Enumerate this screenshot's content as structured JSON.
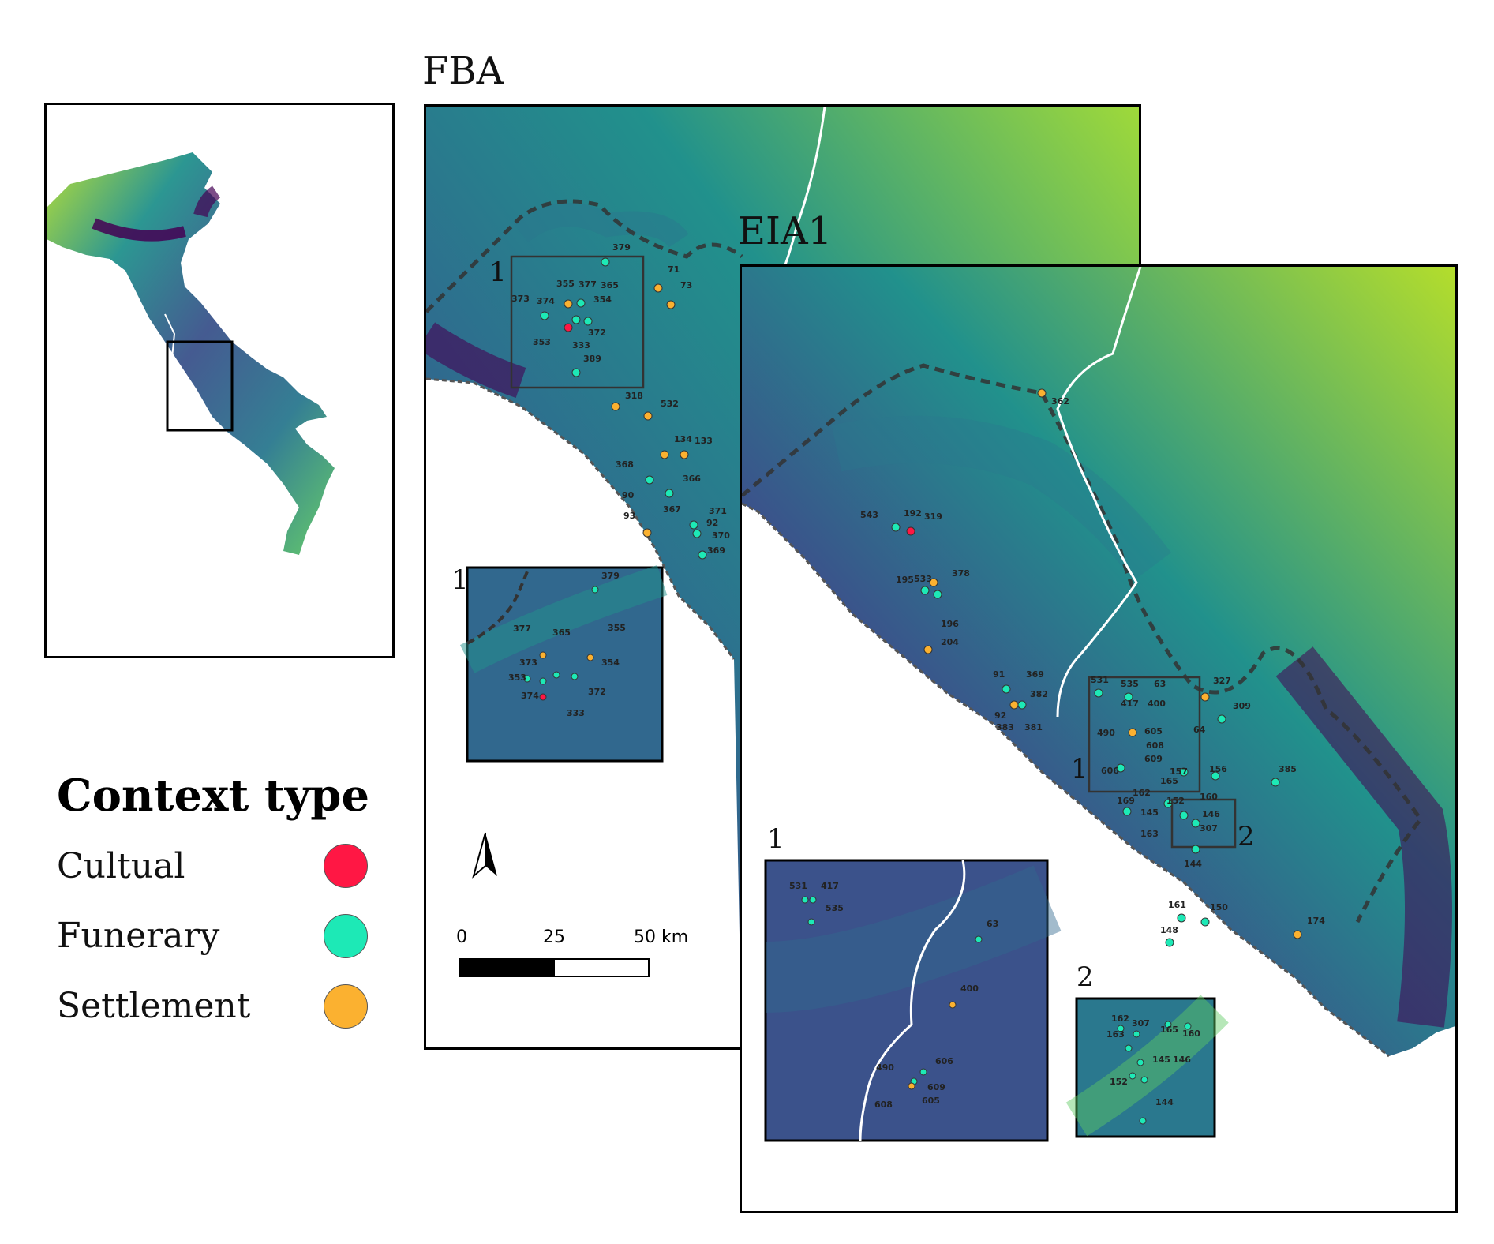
{
  "titles": {
    "panel_fba": "FBA",
    "panel_eia1": "EIA1"
  },
  "legend": {
    "title": "Context type",
    "items": [
      {
        "label": "Cultual",
        "color": "#ff1744"
      },
      {
        "label": "Funerary",
        "color": "#1de9b6"
      },
      {
        "label": "Settlement",
        "color": "#fbb130"
      }
    ]
  },
  "scale_bar": {
    "tick_0": "0",
    "tick_25": "25",
    "tick_50": "50 km"
  },
  "inset_numbers": {
    "one": "1",
    "two": "2"
  },
  "colors": {
    "terrain_low": "#440154",
    "terrain_mid": "#2a788e",
    "terrain_high": "#b5de2b",
    "border_line": "#3a3a3a",
    "river_line": "#ffffff"
  },
  "fba_sites": [
    "379",
    "71",
    "73",
    "355",
    "377",
    "365",
    "373",
    "374",
    "354",
    "372",
    "353",
    "333",
    "389",
    "318",
    "532",
    "134",
    "133",
    "368",
    "366",
    "90",
    "367",
    "371",
    "92",
    "370",
    "93",
    "369"
  ],
  "fba_inset_sites": [
    "379",
    "377",
    "365",
    "355",
    "373",
    "354",
    "353",
    "372",
    "374",
    "333"
  ],
  "eia1_sites": [
    "362",
    "543",
    "192",
    "319",
    "195",
    "533",
    "378",
    "196",
    "204",
    "91",
    "369",
    "382",
    "92",
    "383",
    "381",
    "531",
    "535",
    "63",
    "327",
    "417",
    "400",
    "309",
    "490",
    "605",
    "64",
    "608",
    "606",
    "609",
    "157",
    "156",
    "385",
    "165",
    "162",
    "160",
    "169",
    "152",
    "145",
    "146",
    "307",
    "163",
    "144",
    "161",
    "150",
    "174",
    "148"
  ],
  "eia1_inset1_sites": [
    "531",
    "417",
    "535",
    "63",
    "400",
    "606",
    "490",
    "609",
    "605",
    "608"
  ],
  "eia1_inset2_sites": [
    "162",
    "307",
    "163",
    "165",
    "160",
    "145",
    "146",
    "152",
    "144"
  ]
}
